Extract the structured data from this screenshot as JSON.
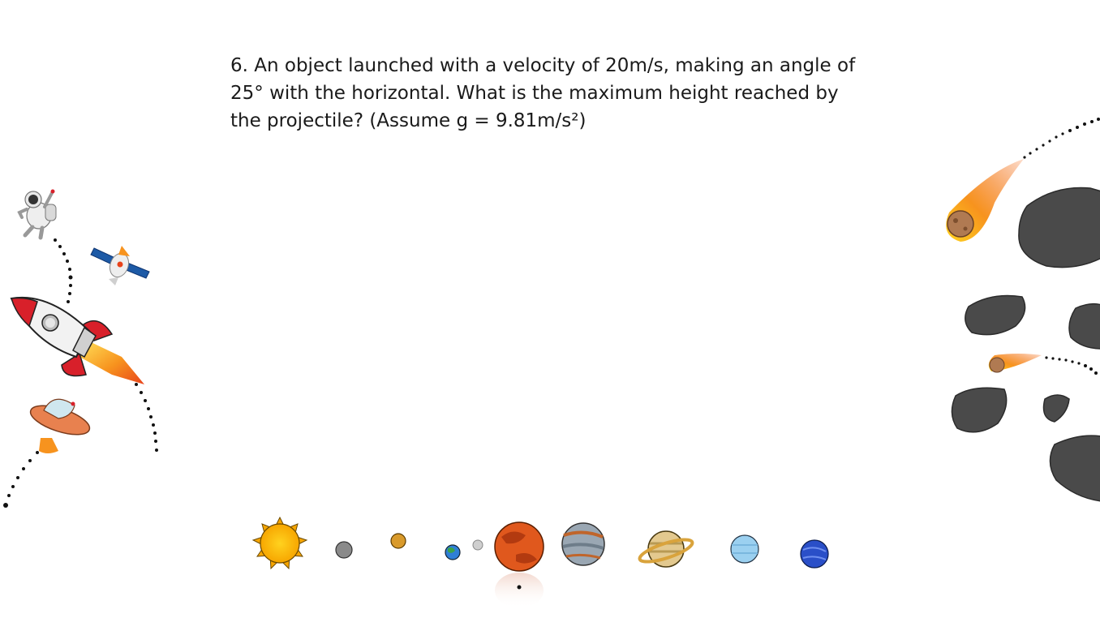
{
  "slide": {
    "question_lines": [
      "6. An object launched with a velocity of 20m/s, making an angle of",
      "25° with the horizontal. What is the maximum height reached by",
      "the projectile? (Assume g = 9.81m/s²)"
    ]
  },
  "decorations": {
    "left": [
      "astronaut-icon",
      "satellite-icon",
      "rocket-icon",
      "ufo-icon"
    ],
    "right": [
      "comet-icon",
      "asteroid-icon"
    ],
    "bottom": [
      "sun-icon",
      "mercury-icon",
      "venus-icon",
      "earth-icon",
      "moon-icon",
      "mars-icon",
      "jupiter-icon",
      "saturn-icon",
      "uranus-icon",
      "neptune-icon"
    ]
  },
  "colors": {
    "text": "#1a1a1a",
    "background": "#ffffff",
    "rocket_red": "#d8202a",
    "flame_orange": "#f7931e",
    "asteroid_gray": "#4a4a4a"
  }
}
